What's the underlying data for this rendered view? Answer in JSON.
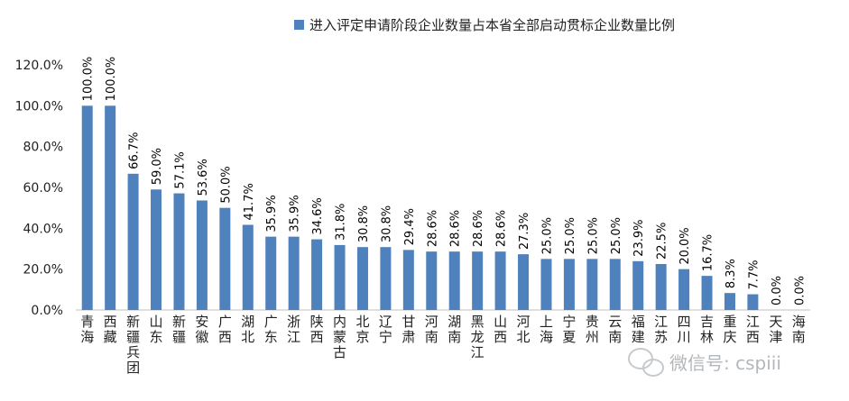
{
  "chart_data": {
    "type": "bar",
    "title": "",
    "xlabel": "",
    "ylabel": "",
    "ylim": [
      0,
      120
    ],
    "y_ticks": [
      "0.0%",
      "20.0%",
      "40.0%",
      "60.0%",
      "80.0%",
      "100.0%",
      "120.0%"
    ],
    "grid": false,
    "legend_position": "top",
    "bar_color": "#4F81BD",
    "categories": [
      "青海",
      "西藏",
      "新疆兵团",
      "山东",
      "新疆",
      "安徽",
      "广西",
      "湖北",
      "广东",
      "浙江",
      "陕西",
      "内蒙古",
      "北京",
      "辽宁",
      "甘肃",
      "河南",
      "湖南",
      "黑龙江",
      "山西",
      "河北",
      "上海",
      "宁夏",
      "贵州",
      "云南",
      "福建",
      "江苏",
      "四川",
      "吉林",
      "重庆",
      "江西",
      "天津",
      "海南"
    ],
    "series": [
      {
        "name": "进入评定申请阶段企业数量占本省全部启动贯标企业数量比例",
        "values": [
          100.0,
          100.0,
          66.7,
          59.0,
          57.1,
          53.6,
          50.0,
          41.7,
          35.9,
          35.9,
          34.6,
          31.8,
          30.8,
          30.8,
          29.4,
          28.6,
          28.6,
          28.6,
          28.6,
          27.3,
          25.0,
          25.0,
          25.0,
          25.0,
          23.9,
          22.5,
          20.0,
          16.7,
          8.3,
          7.7,
          0.0,
          0.0
        ],
        "labels": [
          "100.0%",
          "100.0%",
          "66.7%",
          "59.0%",
          "57.1%",
          "53.6%",
          "50.0%",
          "41.7%",
          "35.9%",
          "35.9%",
          "34.6%",
          "31.8%",
          "30.8%",
          "30.8%",
          "29.4%",
          "28.6%",
          "28.6%",
          "28.6%",
          "28.6%",
          "27.3%",
          "25.0%",
          "25.0%",
          "25.0%",
          "25.0%",
          "23.9%",
          "22.5%",
          "20.0%",
          "16.7%",
          "8.3%",
          "7.7%",
          "0.0%",
          "0.0%"
        ]
      }
    ]
  },
  "watermark": "微信号: cspiii"
}
